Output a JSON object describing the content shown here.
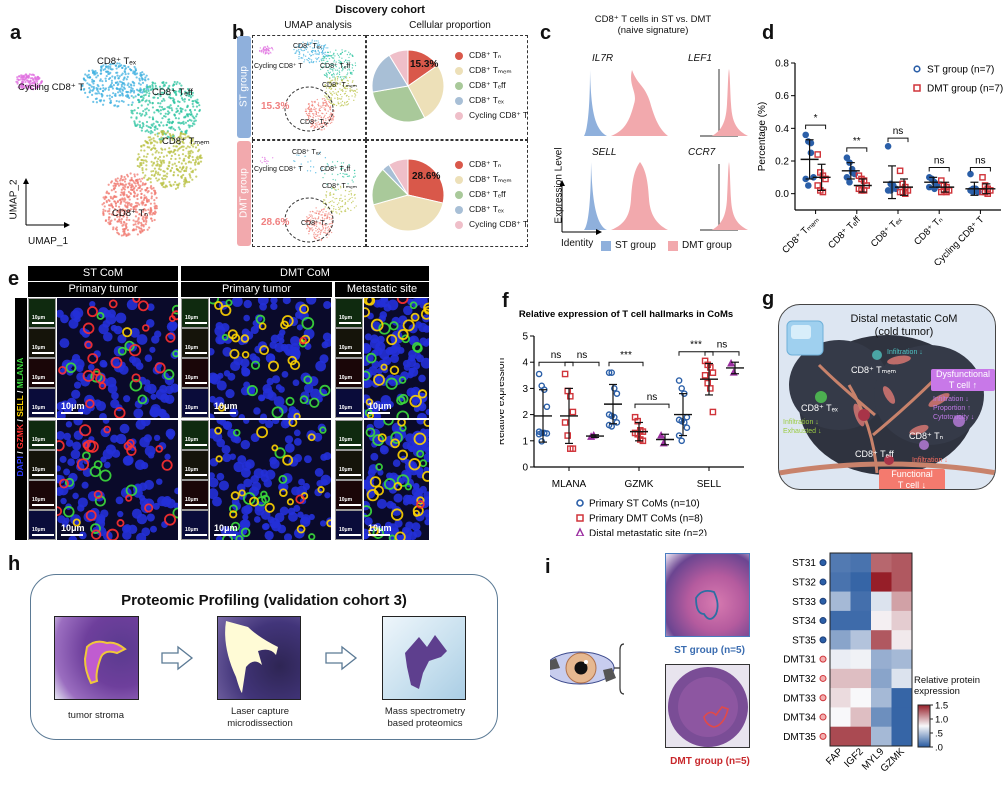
{
  "panels": {
    "a": {
      "label": "a",
      "clusters": [
        "CD8⁺ Tₑₓ",
        "Cycling CD8⁺ T",
        "CD8⁺ Tₑff",
        "CD8⁺ Tₘₑₘ",
        "CD8⁺ Tₙ"
      ],
      "axis_x": "UMAP_1",
      "axis_y": "UMAP_2"
    },
    "b": {
      "label": "b",
      "title": "Discovery  cohort",
      "col1": "UMAP analysis",
      "col2": "Cellular proportion",
      "groups": [
        {
          "name": "ST group",
          "color": "#8fb0dc",
          "naive_pct": "15.3%",
          "umap_labels": [
            "CD8⁺ Tₑₓ",
            "Cycling CD8⁺ T",
            "CD8⁺ Tₑff",
            "CD8⁺ Tₘₑₘ",
            "CD8⁺ Tₙ"
          ]
        },
        {
          "name": "DMT group",
          "color": "#f2a9ad",
          "naive_pct": "28.6%",
          "umap_labels": [
            "CD8⁺ Tₑₓ",
            "Cycling CD8⁺ T",
            "CD8⁺ Tₑff",
            "CD8⁺ Tₘₑₘ",
            "CD8⁺ Tₙ"
          ]
        }
      ],
      "legend": [
        {
          "label": "CD8⁺ Tₙ",
          "color": "#d9584a"
        },
        {
          "label": "CD8⁺ Tₘₑₘ",
          "color": "#ede0b8"
        },
        {
          "label": "CD8⁺ Tₑff",
          "color": "#a9c99a"
        },
        {
          "label": "CD8⁺ Tₑₓ",
          "color": "#a8bfd6"
        },
        {
          "label": "Cycling CD8⁺ T",
          "color": "#efbfc9"
        }
      ]
    },
    "c": {
      "label": "c",
      "title_line1": "CD8⁺ T cells in ST vs. DMT",
      "title_line2": "(naive signature)",
      "genes": [
        "IL7R",
        "LEF1",
        "SELL",
        "CCR7"
      ],
      "ylabel": "Expression Level",
      "xlabel": "Identity",
      "legend": [
        {
          "label": "ST group",
          "color": "#8fb0dc"
        },
        {
          "label": "DMT group",
          "color": "#f2a9ad"
        }
      ]
    },
    "d": {
      "label": "d"
    },
    "e": {
      "label": "e",
      "header_st": "ST CoM",
      "header_dmt": "DMT CoM",
      "sub_headers": [
        "Primary tumor",
        "Primary tumor",
        "Metastatic site"
      ],
      "channel_label": [
        {
          "text": "DAPI",
          "color": "#2e3bff"
        },
        {
          "text": " / ",
          "color": "#ffffff"
        },
        {
          "text": "GZMK",
          "color": "#ff3030"
        },
        {
          "text": " / ",
          "color": "#ffffff"
        },
        {
          "text": "SELL",
          "color": "#ffd400"
        },
        {
          "text": " / ",
          "color": "#ffffff"
        },
        {
          "text": "MLANA",
          "color": "#3cdc3c"
        }
      ],
      "scale_main": "10μm",
      "scale_thumb": "10μm"
    },
    "f": {
      "label": "f"
    },
    "g": {
      "label": "g",
      "title_line1": "Distal metastatic CoM",
      "title_line2": "(cold tumor)",
      "cells": [
        "CD8⁺ Tₘₑₘ",
        "CD8⁺ Tₑₓ",
        "CD8⁺ Tₙ",
        "CD8⁺ Tₑff"
      ],
      "tem_note": "Infiltration ↓",
      "tex_note1": "Infiltration ↓",
      "tex_note2": "Exhausted ↓",
      "tn_note1": "Infiltration ↓",
      "tn_note2": "Proportion ↑",
      "tn_note3": "Cytotoxicity ↓",
      "teff_note": "Infiltration ↓",
      "dysfunctional_1": "Dysfunctional",
      "dysfunctional_2": "T cell ↑",
      "functional_1": "Functional",
      "functional_2": "T cell ↓"
    },
    "h": {
      "label": "h",
      "title": "Proteomic Profiling (validation cohort 3)",
      "steps": [
        {
          "caption1": "tumor stroma",
          "caption2": ""
        },
        {
          "caption1": "Laser capture",
          "caption2": "microdissection"
        },
        {
          "caption1": "Mass spectrometry",
          "caption2": "based proteomics"
        }
      ]
    },
    "i": {
      "label": "i",
      "st_label": "ST group (n=5)",
      "dmt_label": "DMT group (n=5)",
      "colorbar_title_1": "Relative protein",
      "colorbar_title_2": "expression",
      "colorbar_ticks": [
        "1.5",
        "1.0",
        ".5",
        ".0"
      ]
    }
  },
  "chart_data": [
    {
      "id": "d",
      "type": "scatter",
      "title": "",
      "ylabel": "Percentage (%)",
      "ylim": [
        -0.1,
        0.8
      ],
      "yticks": [
        "0.0",
        "0.2",
        "0.4",
        "0.6",
        "0.8"
      ],
      "yticks_values": [
        0,
        0.2,
        0.4,
        0.6,
        0.8
      ],
      "categories": [
        "CD8⁺ Tₘₑₘ",
        "CD8⁺ Tₑff",
        "CD8⁺ Tₑₓ",
        "CD8⁺ Tₙ",
        "Cycling CD8⁺ T"
      ],
      "significance": [
        "*",
        "**",
        "ns",
        "ns",
        "ns"
      ],
      "series": [
        {
          "name": "ST group (n=7)",
          "color": "#2b5fa8",
          "marker": "circle",
          "mean": [
            0.21,
            0.14,
            0.07,
            0.07,
            0.03
          ],
          "sd": [
            0.12,
            0.05,
            0.1,
            0.03,
            0.04
          ],
          "points": [
            [
              0.36,
              0.32,
              0.25,
              0.1,
              0.09,
              0.05,
              0.31
            ],
            [
              0.22,
              0.19,
              0.15,
              0.12,
              0.1,
              0.07,
              0.13
            ],
            [
              0.29,
              0.06,
              0.04,
              0.03,
              0.02,
              0.02,
              0.05
            ],
            [
              0.1,
              0.09,
              0.07,
              0.05,
              0.04,
              0.09,
              0.03
            ],
            [
              0.12,
              0.03,
              0.02,
              0.01,
              0.02,
              0.01,
              0.03
            ]
          ]
        },
        {
          "name": "DMT group (n=7)",
          "color": "#d0343a",
          "marker": "square",
          "mean": [
            0.1,
            0.05,
            0.04,
            0.04,
            0.03
          ],
          "sd": [
            0.08,
            0.04,
            0.05,
            0.03,
            0.03
          ],
          "points": [
            [
              0.24,
              0.13,
              0.11,
              0.09,
              0.05,
              0.02,
              0.01
            ],
            [
              0.11,
              0.09,
              0.08,
              0.05,
              0.03,
              0.02,
              0.02
            ],
            [
              0.14,
              0.06,
              0.04,
              0.02,
              0.01,
              0.01,
              0.0
            ],
            [
              0.08,
              0.05,
              0.04,
              0.02,
              0.01,
              0.02,
              0.01
            ],
            [
              0.1,
              0.05,
              0.03,
              0.02,
              0.01,
              0.01,
              0.0
            ]
          ]
        }
      ]
    },
    {
      "id": "f",
      "type": "scatter",
      "title": "Relative expression of T cell hallmarks in CoMs",
      "ylabel": "Relative expression",
      "ylim": [
        0,
        5
      ],
      "yticks": [
        "0",
        "1",
        "2",
        "3",
        "4",
        "5"
      ],
      "yticks_values": [
        0,
        1,
        2,
        3,
        4,
        5
      ],
      "categories": [
        "MLANA",
        "GZMK",
        "SELL"
      ],
      "significance": [
        {
          "category": 0,
          "pair": [
            0,
            1
          ],
          "label": "ns"
        },
        {
          "category": 0,
          "pair": [
            1,
            2
          ],
          "label": "ns"
        },
        {
          "category": 1,
          "pair": [
            0,
            1
          ],
          "label": "***"
        },
        {
          "category": 1,
          "pair": [
            1,
            2
          ],
          "label": "ns"
        },
        {
          "category": 2,
          "pair": [
            0,
            1
          ],
          "label": "***"
        },
        {
          "category": 2,
          "pair": [
            1,
            2
          ],
          "label": "ns"
        }
      ],
      "series": [
        {
          "name": "Primary ST CoMs (n=10)",
          "color": "#2b5fa8",
          "marker": "circle",
          "mean": [
            1.95,
            2.4,
            2.0
          ],
          "sd": [
            1.0,
            0.75,
            0.8
          ],
          "points": [
            [
              3.55,
              3.1,
              2.95,
              2.3,
              1.35,
              1.3,
              1.3,
              1.28,
              1.25,
              0.98
            ],
            [
              3.6,
              3.6,
              3.0,
              2.8,
              2.0,
              1.95,
              1.9,
              1.7,
              1.6,
              1.55
            ],
            [
              3.3,
              3.0,
              2.8,
              1.9,
              1.8,
              1.75,
              1.7,
              1.5,
              1.2,
              1.0
            ]
          ]
        },
        {
          "name": "Primary DMT CoMs (n=8)",
          "color": "#d0343a",
          "marker": "square",
          "mean": [
            1.95,
            1.35,
            3.35
          ],
          "sd": [
            1.05,
            0.35,
            0.6
          ],
          "points": [
            [
              3.55,
              2.9,
              2.7,
              2.1,
              1.7,
              1.2,
              0.7,
              0.7
            ],
            [
              1.9,
              1.75,
              1.4,
              1.35,
              1.3,
              1.25,
              1.05,
              1.0
            ],
            [
              4.05,
              3.9,
              3.8,
              3.6,
              3.5,
              3.2,
              3.0,
              2.1
            ]
          ]
        },
        {
          "name": "Distal metastatic site (n=2)",
          "color": "#9b2fa0",
          "marker": "triangle",
          "mean": [
            1.18,
            1.05,
            3.78
          ],
          "sd": [
            0.05,
            0.2,
            0.22
          ],
          "points": [
            [
              1.15,
              1.2
            ],
            [
              1.2,
              0.9
            ],
            [
              3.95,
              3.6
            ]
          ]
        }
      ]
    },
    {
      "id": "i",
      "type": "heatmap",
      "title": "",
      "rows": [
        "ST31",
        "ST32",
        "ST33",
        "ST34",
        "ST35",
        "DMT31",
        "DMT32",
        "DMT33",
        "DMT34",
        "DMT35"
      ],
      "row_groups": [
        "ST",
        "ST",
        "ST",
        "ST",
        "ST",
        "DMT",
        "DMT",
        "DMT",
        "DMT",
        "DMT"
      ],
      "columns": [
        "FAP",
        "IGF2",
        "MYL9",
        "GZMK"
      ],
      "range": [
        0,
        1.5
      ],
      "values": [
        [
          0.15,
          0.12,
          1.25,
          1.3
        ],
        [
          0.12,
          0.05,
          1.5,
          1.3
        ],
        [
          0.45,
          0.1,
          0.65,
          1.05
        ],
        [
          0.08,
          0.08,
          0.78,
          0.9
        ],
        [
          0.35,
          0.5,
          1.3,
          0.8
        ],
        [
          0.7,
          0.72,
          0.4,
          0.45
        ],
        [
          0.95,
          0.95,
          0.35,
          0.65
        ],
        [
          0.85,
          0.75,
          0.45,
          0.05
        ],
        [
          0.75,
          0.95,
          0.25,
          0.05
        ],
        [
          1.35,
          1.35,
          0.45,
          0.05
        ]
      ]
    }
  ]
}
